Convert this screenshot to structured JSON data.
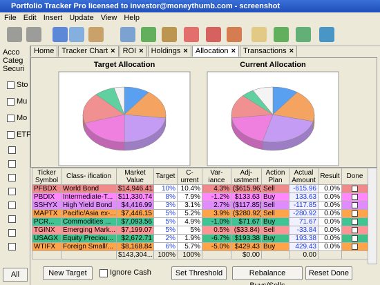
{
  "window": {
    "title": "Portfolio Tracker Pro licensed to investor@moneythumb.com  - screenshot"
  },
  "menu": [
    "File",
    "Edit",
    "Insert",
    "Update",
    "View",
    "Help"
  ],
  "sidebar": {
    "items": [
      "Acco",
      "Categ",
      "Securi"
    ],
    "checks": [
      "Sto",
      "Mu",
      "Mo",
      "ETF"
    ],
    "button": "All"
  },
  "tabs": [
    "Home",
    "Tracker Chart",
    "ROI",
    "Holdings",
    "Allocation",
    "Transactions"
  ],
  "active_tab": 4,
  "chart_data": [
    {
      "type": "pie",
      "title": "Target Allocation",
      "values": [
        10,
        17,
        23,
        20,
        18,
        8,
        4
      ],
      "colors": [
        "#5aa0f0",
        "#f4a460",
        "#c49cf4",
        "#f080e0",
        "#f09090",
        "#60d0a0",
        "#f4f4f4"
      ]
    },
    {
      "type": "pie",
      "title": "Current Allocation",
      "values": [
        10,
        19,
        25,
        19,
        14,
        5,
        8
      ],
      "colors": [
        "#5aa0f0",
        "#f4a460",
        "#c49cf4",
        "#f080e0",
        "#f09090",
        "#60d0a0",
        "#f4f4f4"
      ]
    }
  ],
  "table": {
    "columns": [
      "Ticker Symbol",
      "Class- ification",
      "Market Value",
      "Target",
      "C- urrent",
      "Var- iance",
      "Adj- ustment",
      "Action Plan",
      "Actual Amount",
      "Result",
      "Done"
    ],
    "rows": [
      [
        "PFBDX",
        "World Bond",
        "$14,946.41",
        "10%",
        "10.4%",
        "4.3%",
        "($615.96)",
        "Sell",
        "-615.96",
        "0.0%"
      ],
      [
        "PBDIX",
        "Intermediate-T...",
        "$11,330.74",
        "8%",
        "7.9%",
        "-1.2%",
        "$133.63",
        "Buy",
        "133.63",
        "0.0%"
      ],
      [
        "SSHYX",
        "High Yield Bond",
        "$4,416.99",
        "3%",
        "3.1%",
        "2.7%",
        "($117.85)",
        "Sell",
        "-117.85",
        "0.0%"
      ],
      [
        "MAPTX",
        "Pacific/Asia ex-...",
        "$7,446.15",
        "5%",
        "5.2%",
        "3.9%",
        "($280.92)",
        "Sell",
        "-280.92",
        "0.0%"
      ],
      [
        "PCR...",
        "Commodities ...",
        "$7,093.56",
        "5%",
        "4.9%",
        "-1.0%",
        "$71.67",
        "Buy",
        "71.67",
        "0.0%"
      ],
      [
        "TGINX",
        "Emerging Mark...",
        "$7,199.07",
        "5%",
        "5%",
        "0.5%",
        "($33.84)",
        "Sell",
        "-33.84",
        "0.0%"
      ],
      [
        "USAGX",
        "Equity Preciou...",
        "$2,672.71",
        "2%",
        "1.9%",
        "-6.7%",
        "$193.38",
        "Buy",
        "193.38",
        "0.0%"
      ],
      [
        "WTIFX",
        "Foreign Small/...",
        "$8,168.84",
        "6%",
        "5.7%",
        "-5.0%",
        "$429.43",
        "Buy",
        "429.43",
        "0.0%"
      ]
    ],
    "row_colors": [
      "#f08a8a",
      "#ff88ff",
      "#e08cff",
      "#ffa448",
      "#40c494",
      "#ff9494",
      "#40c088",
      "#ffa448"
    ],
    "totals": [
      null,
      null,
      "$143,304....",
      "100%",
      "100%",
      null,
      "$0.00",
      null,
      "0.00",
      null,
      null
    ]
  },
  "buttons": {
    "new_target": "New Target",
    "ignore_cash": "Ignore Cash",
    "set_threshold": "Set Threshold",
    "rebalance": "Rebalance Buys/Sells",
    "reset_done": "Reset Done"
  }
}
